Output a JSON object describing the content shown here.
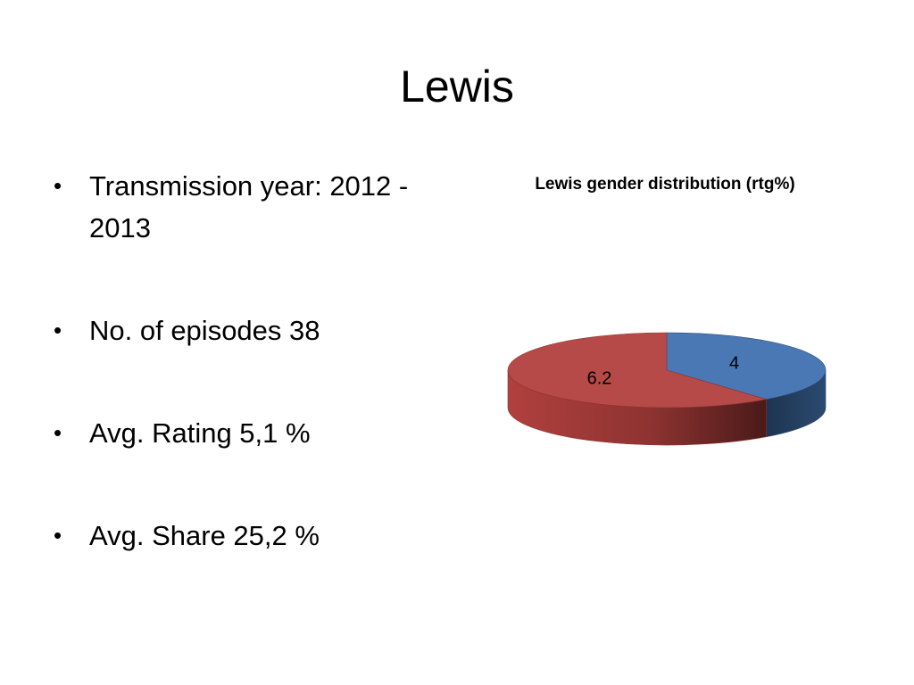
{
  "slide": {
    "title": "Lewis",
    "bullets": [
      "Transmission year: 2012 - 2013",
      "No. of episodes 38",
      "Avg. Rating 5,1 %",
      "Avg. Share 25,2 %"
    ]
  },
  "chart_data": {
    "type": "pie",
    "title": "Lewis gender distribution (rtg%)",
    "labels": [
      "",
      ""
    ],
    "values": [
      4,
      6.2
    ],
    "data_labels": [
      "4",
      "6.2"
    ],
    "colors": [
      "#4a78b5",
      "#b54a48"
    ],
    "style": "3d"
  }
}
